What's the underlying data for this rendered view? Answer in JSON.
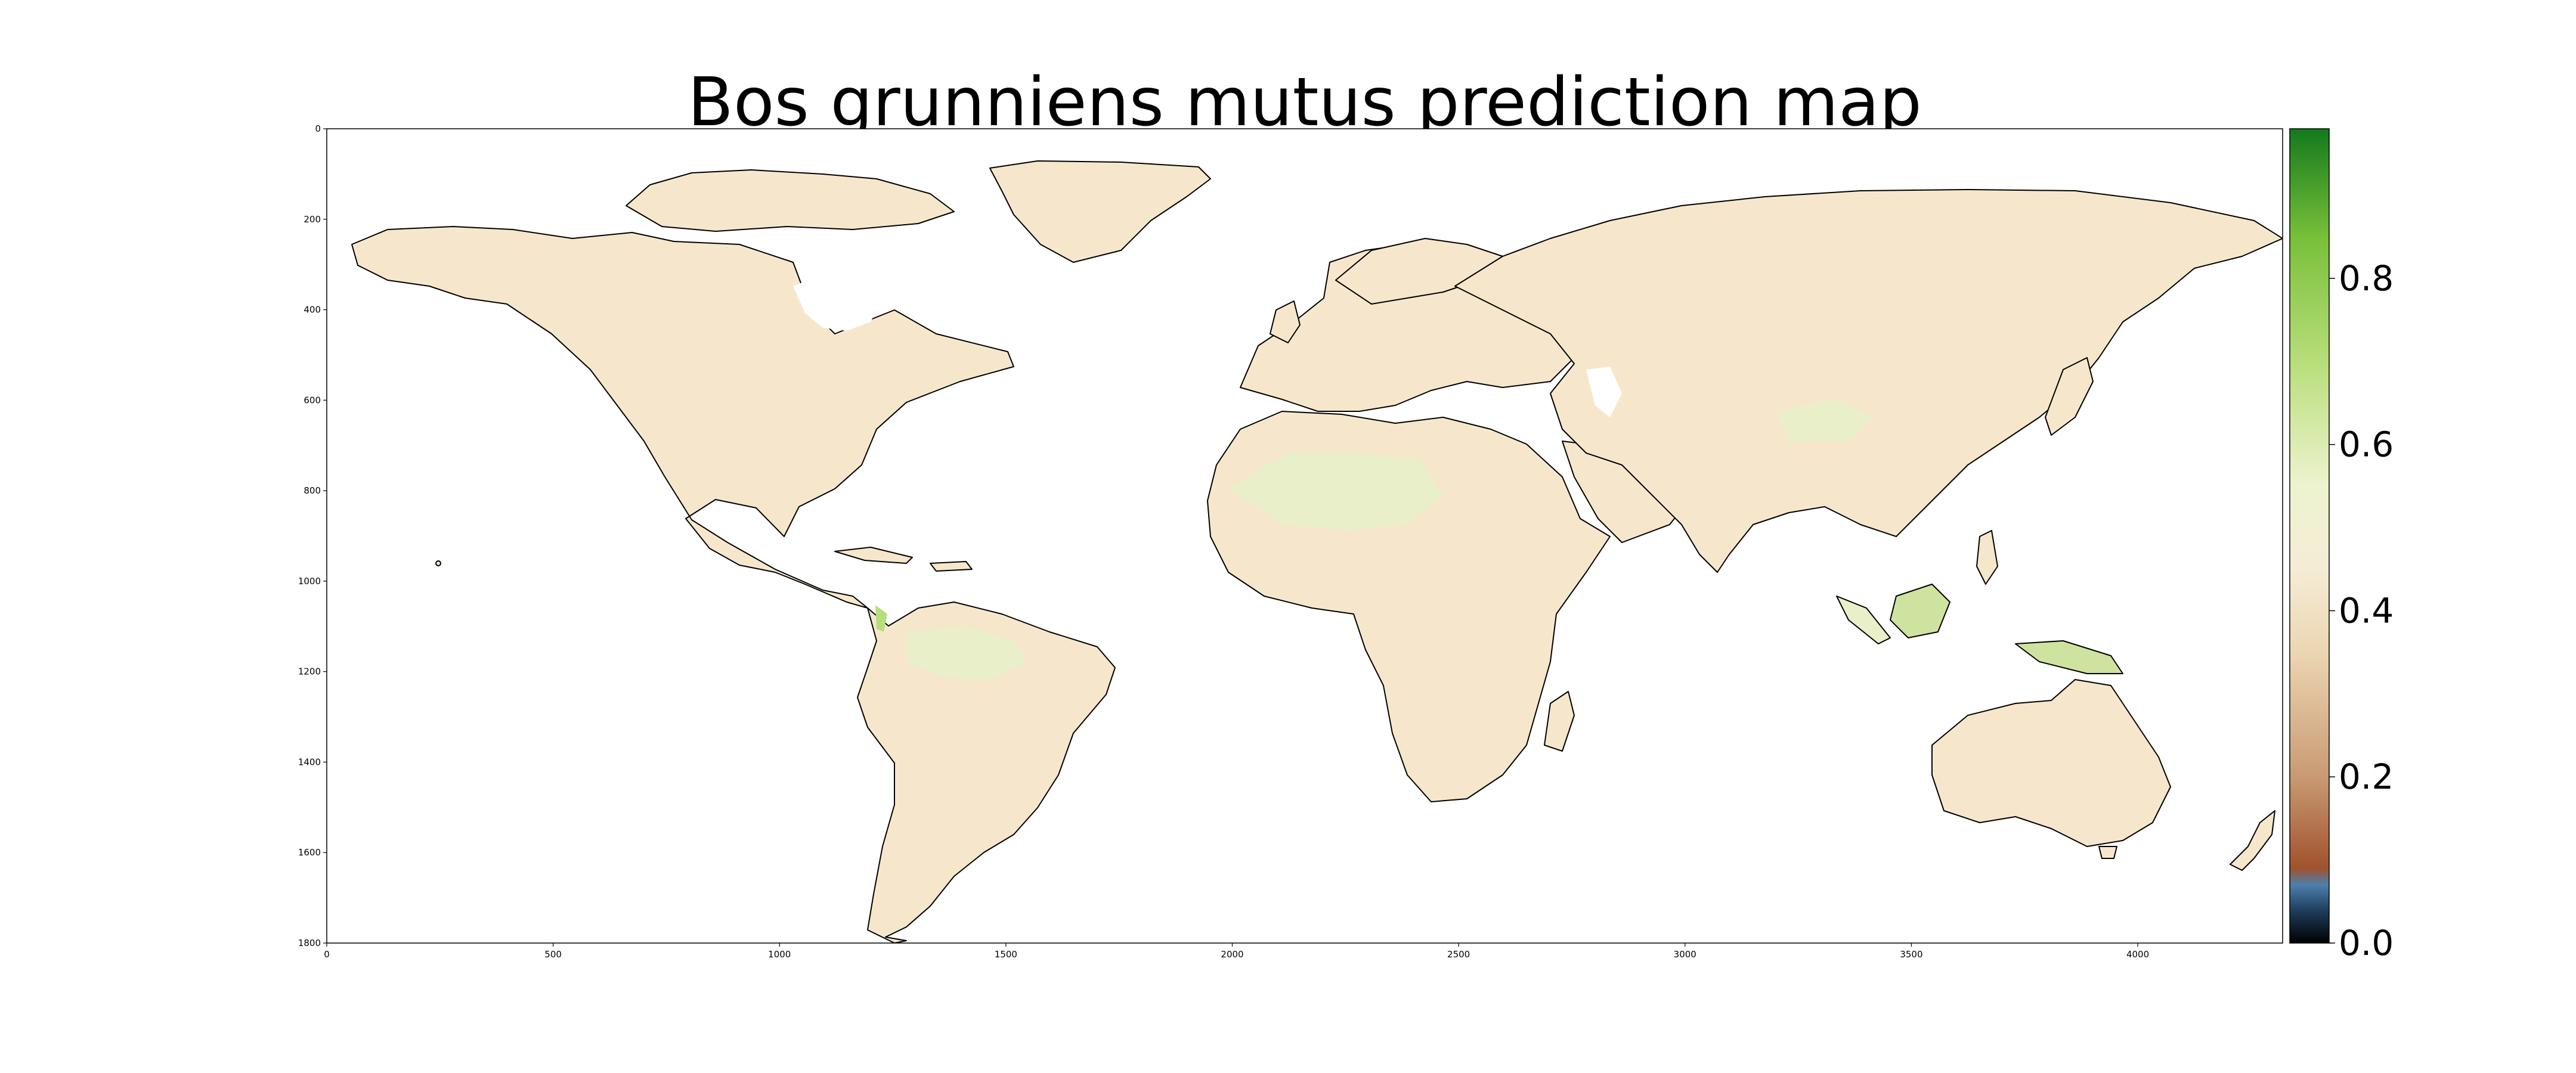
{
  "chart_data": {
    "type": "heatmap",
    "title": "Bos grunniens mutus prediction map",
    "xlabel": "",
    "ylabel": "",
    "xlim": [
      0,
      4320
    ],
    "ylim": [
      1800,
      0
    ],
    "x_ticks": [
      0,
      500,
      1000,
      1500,
      2000,
      2500,
      3000,
      3500,
      4000
    ],
    "y_ticks": [
      0,
      200,
      400,
      600,
      800,
      1000,
      1200,
      1400,
      1600,
      1800
    ],
    "colorbar": {
      "ticks": [
        "0.0",
        "0.2",
        "0.4",
        "0.6",
        "0.8"
      ],
      "range": [
        0.0,
        0.98
      ],
      "stops": [
        {
          "value": 0.0,
          "color": "#000000"
        },
        {
          "value": 0.04,
          "color": "#1f3f5f"
        },
        {
          "value": 0.07,
          "color": "#4d7fae"
        },
        {
          "value": 0.09,
          "color": "#a0522d"
        },
        {
          "value": 0.2,
          "color": "#c99a73"
        },
        {
          "value": 0.35,
          "color": "#ecd6b2"
        },
        {
          "value": 0.45,
          "color": "#f5ecd6"
        },
        {
          "value": 0.55,
          "color": "#eef3cf"
        },
        {
          "value": 0.7,
          "color": "#b7de7a"
        },
        {
          "value": 0.85,
          "color": "#78bf3a"
        },
        {
          "value": 0.98,
          "color": "#137a1c"
        }
      ]
    },
    "background_value": 0.4,
    "grid": false
  },
  "colors": {
    "land_base": "#f6e7cc",
    "land_green": "#e8efc9",
    "land_hot": "#cfe3a0",
    "coast_line": "#000000"
  }
}
